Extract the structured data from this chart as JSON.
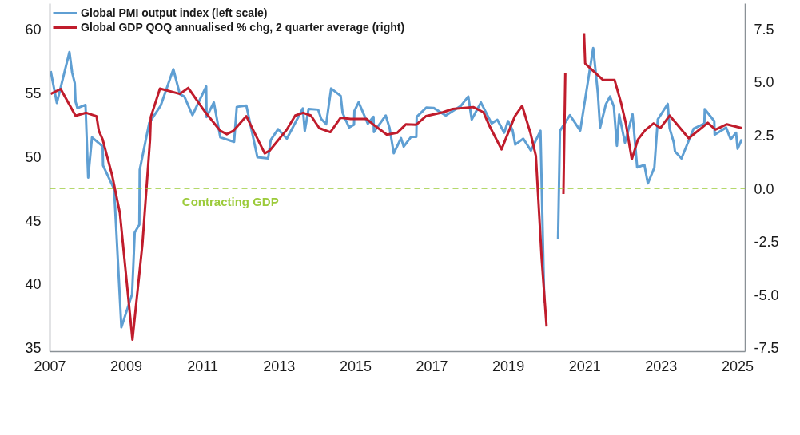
{
  "chart_data": {
    "type": "line",
    "xlim": [
      2007,
      2025.2
    ],
    "xticks": [
      2007,
      2009,
      2011,
      2013,
      2015,
      2017,
      2019,
      2021,
      2023,
      2025
    ],
    "ylim": [
      34.7,
      62
    ],
    "yticks": [
      35,
      40,
      45,
      50,
      55,
      60
    ],
    "y2lim": [
      -7.68,
      8.7
    ],
    "y2ticks": [
      {
        "value": -7.5,
        "label": "-7.5"
      },
      {
        "value": -5,
        "label": "-5.0"
      },
      {
        "value": -2.5,
        "label": "-2.5"
      },
      {
        "value": 0,
        "label": "0.0"
      },
      {
        "value": 2.5,
        "label": "2.5"
      },
      {
        "value": 5,
        "label": "5.0"
      },
      {
        "value": 7.5,
        "label": "7.5"
      }
    ],
    "grid": false,
    "legend": "top left",
    "line_style": "solid",
    "ref_lines": [
      {
        "axis": "y2",
        "value": 0,
        "label": "Contracting GDP",
        "color": "#9ccb3b",
        "line_style": "dashed"
      }
    ],
    "series": [
      {
        "name": "Global PMI output index (left scale)",
        "color": "#5f9fd3",
        "x": [
          2007.02,
          2007.18,
          2007.51,
          2007.58,
          2007.65,
          2007.67,
          2007.72,
          2007.93,
          2008.0,
          2008.1,
          2008.38,
          2008.39,
          2008.68,
          2008.87,
          2009.15,
          2009.22,
          2009.34,
          2009.35,
          2009.6,
          2009.9,
          2010.23,
          2010.4,
          2010.52,
          2010.73,
          2011.09,
          2011.1,
          2011.29,
          2011.46,
          2011.82,
          2011.89,
          2012.14,
          2012.43,
          2012.71,
          2012.78,
          2012.97,
          2013.2,
          2013.62,
          2013.67,
          2013.77,
          2014.02,
          2014.1,
          2014.23,
          2014.36,
          2014.61,
          2014.66,
          2014.83,
          2014.96,
          2014.97,
          2015.08,
          2015.32,
          2015.47,
          2015.48,
          2015.79,
          2015.89,
          2016.0,
          2016.19,
          2016.26,
          2016.45,
          2016.59,
          2016.6,
          2016.85,
          2017.04,
          2017.36,
          2017.76,
          2017.95,
          2018.04,
          2018.28,
          2018.56,
          2018.71,
          2018.89,
          2018.99,
          2019.11,
          2019.18,
          2019.39,
          2019.59,
          2019.84,
          2019.94,
          2019.99,
          2020.22,
          2020.3,
          2020.35,
          2020.61,
          2020.88,
          2021.22,
          2021.34,
          2021.4,
          2021.55,
          2021.66,
          2021.76,
          2021.84,
          2021.9,
          2022.05,
          2022.25,
          2022.37,
          2022.56,
          2022.65,
          2022.82,
          2022.91,
          2023.17,
          2023.22,
          2023.33,
          2023.36,
          2023.53,
          2023.85,
          2024.13,
          2024.14,
          2024.39,
          2024.4,
          2024.7,
          2024.82,
          2024.96,
          2025.0,
          2025.11
        ],
        "values": [
          56.7,
          54.2,
          58.2,
          56.6,
          55.75,
          54.3,
          53.8,
          54.05,
          48.35,
          51.5,
          50.8,
          49.3,
          47.45,
          36.6,
          39.2,
          44.05,
          44.65,
          48.95,
          52.65,
          54.0,
          56.85,
          54.9,
          54.7,
          53.25,
          55.5,
          53.1,
          54.25,
          51.5,
          51.15,
          53.9,
          54.0,
          49.95,
          49.85,
          51.3,
          52.15,
          51.4,
          53.78,
          52.02,
          53.74,
          53.68,
          52.95,
          52.54,
          55.34,
          54.76,
          53.43,
          52.29,
          52.5,
          53.58,
          54.26,
          52.58,
          53.12,
          51.92,
          53.22,
          52.23,
          50.26,
          51.44,
          50.78,
          51.54,
          51.54,
          53.12,
          53.84,
          53.82,
          53.22,
          53.99,
          54.71,
          52.91,
          54.24,
          52.6,
          52.89,
          51.87,
          52.78,
          52.06,
          50.94,
          51.4,
          50.47,
          52.02,
          38.5,
          null,
          null,
          43.5,
          52.02,
          53.25,
          52.04,
          58.51,
          55.02,
          52.27,
          54.09,
          54.71,
          53.92,
          50.84,
          53.3,
          51.09,
          53.32,
          49.15,
          49.34,
          47.89,
          49.13,
          52.91,
          54.13,
          52.22,
          51.09,
          50.4,
          49.85,
          52.2,
          52.58,
          53.72,
          52.78,
          51.71,
          52.27,
          51.35,
          51.87,
          50.61,
          51.35
        ]
      },
      {
        "name": "Global GDP QOQ annualised % chg, 2 quarter average (right)",
        "color": "#c01c2c",
        "axis": "y2",
        "x": [
          2007.02,
          2007.28,
          2007.67,
          2007.95,
          2008.22,
          2008.28,
          2008.38,
          2008.63,
          2008.83,
          2009.16,
          2009.42,
          2009.62,
          2009.64,
          2009.88,
          2010.4,
          2010.62,
          2011.07,
          2011.46,
          2011.63,
          2011.8,
          2012.14,
          2012.62,
          2012.75,
          2013.2,
          2013.42,
          2013.63,
          2013.83,
          2014.05,
          2014.34,
          2014.61,
          2014.87,
          2015.29,
          2015.5,
          2015.82,
          2016.09,
          2016.32,
          2016.59,
          2016.84,
          2017.28,
          2017.54,
          2018.08,
          2018.35,
          2018.5,
          2018.82,
          2019.17,
          2019.36,
          2019.58,
          2019.72,
          2019.87,
          2020.0,
          2020.09,
          2020.39,
          2020.44,
          2020.49,
          2020.52,
          2020.96,
          2020.98,
          2021.01,
          2021.48,
          2021.78,
          2021.95,
          2022.07,
          2022.14,
          2022.23,
          2022.39,
          2022.58,
          2022.8,
          2022.98,
          2023.22,
          2023.72,
          2024.22,
          2024.42,
          2024.72,
          2025.11
        ],
        "values": [
          4.45,
          4.68,
          3.42,
          3.56,
          3.4,
          2.71,
          2.3,
          0.6,
          -1.15,
          -7.12,
          -2.64,
          2.3,
          3.36,
          4.7,
          4.45,
          4.73,
          3.58,
          2.71,
          2.55,
          2.71,
          3.4,
          1.65,
          1.78,
          2.77,
          3.43,
          3.56,
          3.43,
          2.84,
          2.65,
          3.33,
          3.27,
          3.27,
          2.96,
          2.53,
          2.62,
          3.02,
          3.0,
          3.4,
          3.58,
          3.74,
          3.83,
          3.58,
          2.96,
          1.84,
          3.4,
          3.89,
          2.59,
          1.53,
          -3.26,
          -6.5,
          null,
          null,
          -0.26,
          5.45,
          null,
          null,
          7.31,
          5.88,
          5.1,
          5.1,
          4.02,
          3.09,
          2.34,
          1.37,
          2.3,
          2.74,
          3.06,
          2.84,
          3.43,
          2.36,
          3.09,
          2.77,
          3.02,
          2.84
        ]
      }
    ]
  }
}
